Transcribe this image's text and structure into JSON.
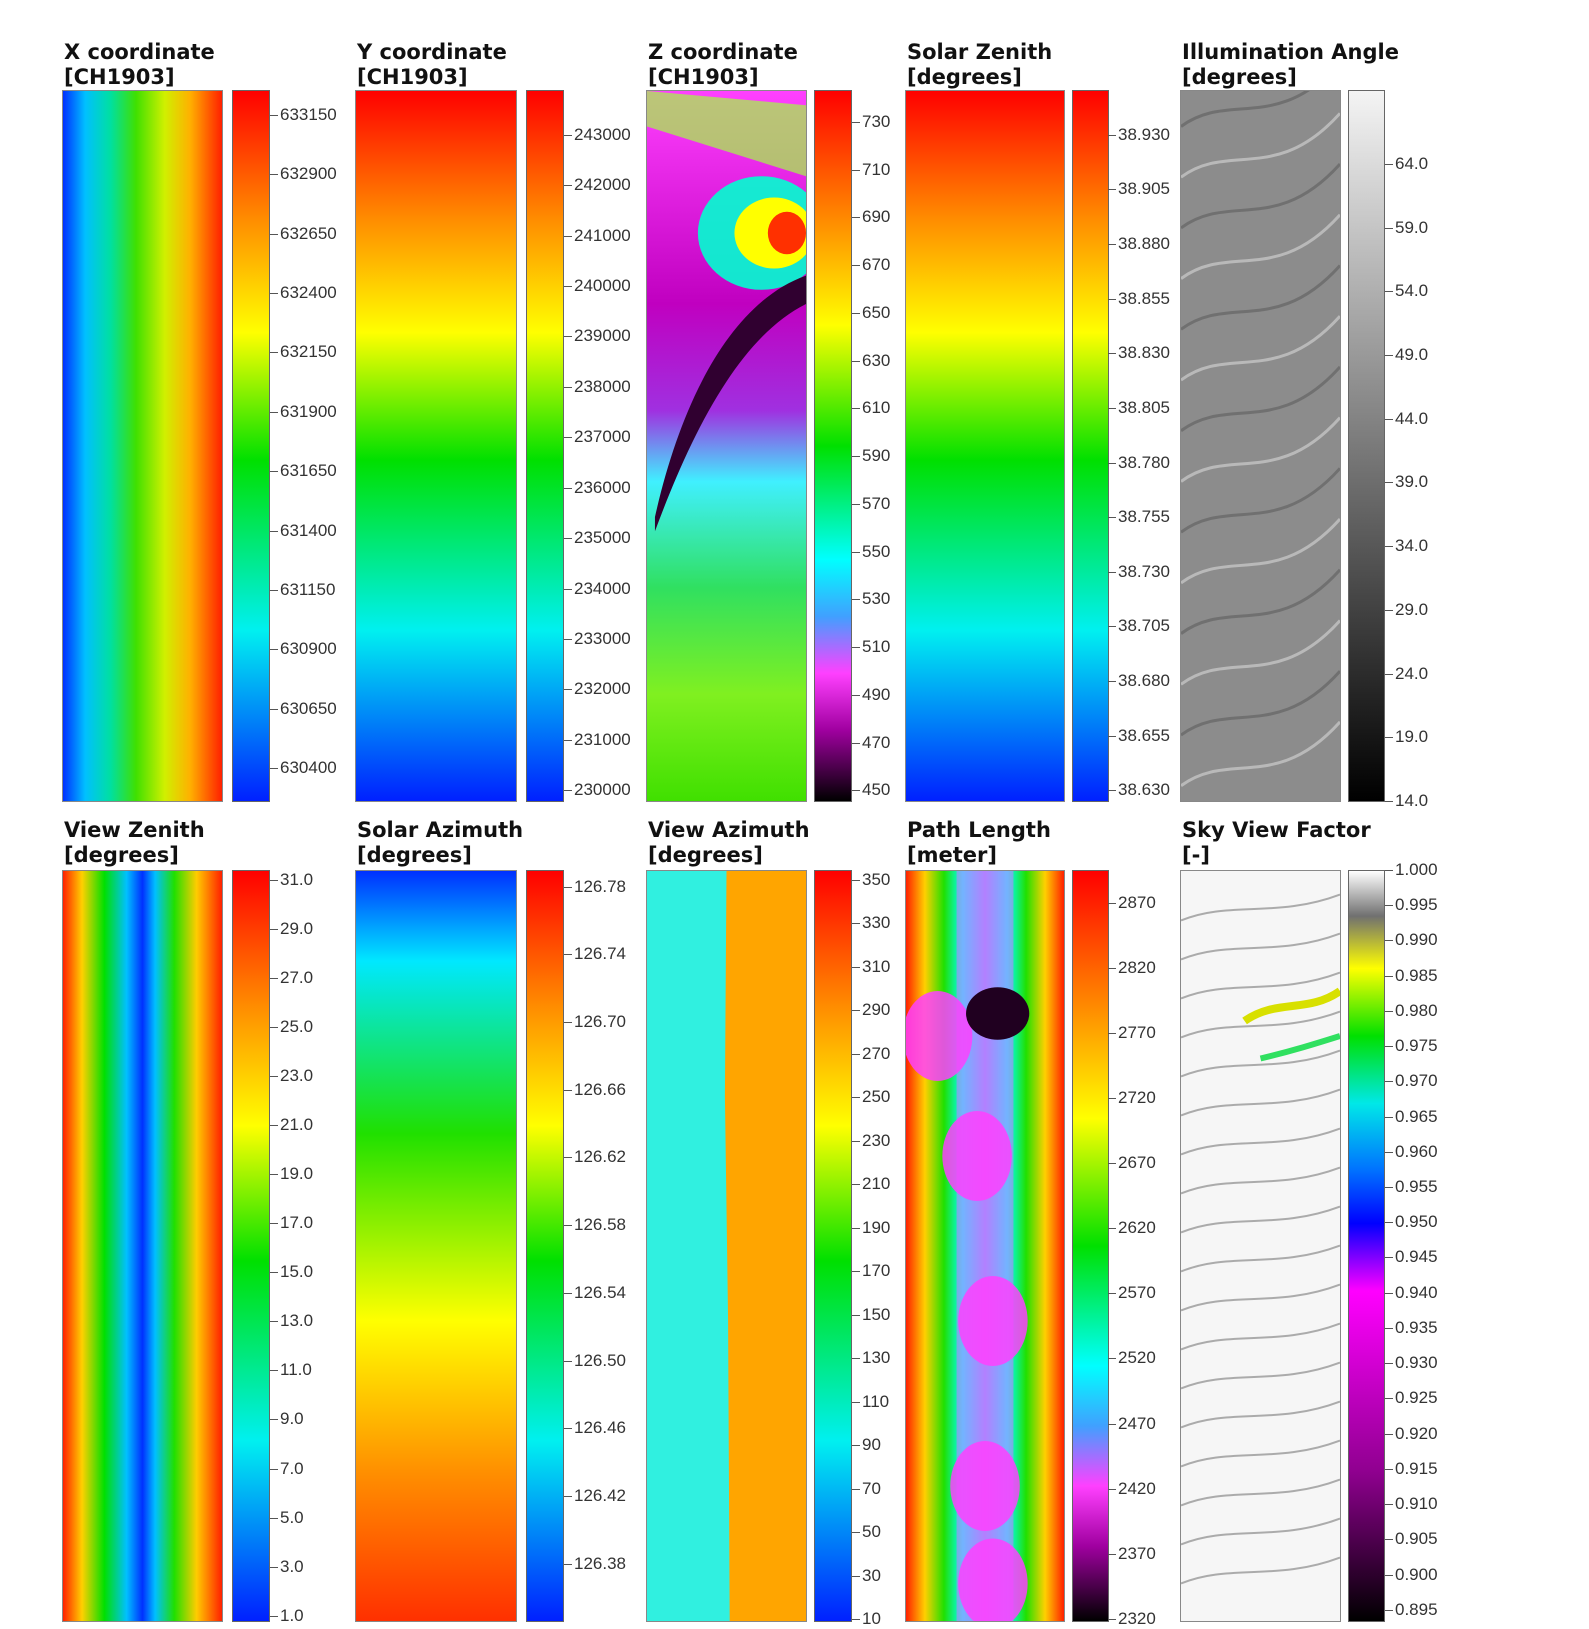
{
  "panels": [
    {
      "id": "x-coordinate",
      "title": "X coordinate",
      "unit": "[CH1903]",
      "colormap": "rainbow",
      "pattern": "horizontal",
      "ticks": [
        "633150",
        "632900",
        "632650",
        "632400",
        "632150",
        "631900",
        "631650",
        "631400",
        "631150",
        "630900",
        "630650",
        "630400"
      ],
      "tick_start": 0.035,
      "tick_end": 0.954
    },
    {
      "id": "y-coordinate",
      "title": "Y coordinate",
      "unit": "[CH1903]",
      "colormap": "rainbow",
      "pattern": "vertical",
      "ticks": [
        "243000",
        "242000",
        "241000",
        "240000",
        "239000",
        "238000",
        "237000",
        "236000",
        "235000",
        "234000",
        "233000",
        "232000",
        "231000",
        "230000"
      ],
      "tick_start": 0.063,
      "tick_end": 0.985
    },
    {
      "id": "z-coordinate",
      "title": "Z coordinate",
      "unit": "[CH1903]",
      "colormap": "elevation",
      "pattern": "terrain",
      "ticks": [
        "730",
        "710",
        "690",
        "670",
        "650",
        "630",
        "610",
        "590",
        "570",
        "550",
        "530",
        "510",
        "490",
        "470",
        "450"
      ],
      "tick_start": 0.045,
      "tick_end": 0.985
    },
    {
      "id": "solar-zenith",
      "title": "Solar Zenith",
      "unit": "[degrees]",
      "colormap": "rainbow",
      "pattern": "vertical",
      "ticks": [
        "38.930",
        "38.905",
        "38.880",
        "38.855",
        "38.830",
        "38.805",
        "38.780",
        "38.755",
        "38.730",
        "38.705",
        "38.680",
        "38.655",
        "38.630"
      ],
      "tick_start": 0.063,
      "tick_end": 0.985
    },
    {
      "id": "illumination-angle",
      "title": "Illumination Angle",
      "unit": "[degrees]",
      "colormap": "gray",
      "pattern": "hillshade",
      "ticks": [
        "64.0",
        "59.0",
        "54.0",
        "49.0",
        "44.0",
        "39.0",
        "34.0",
        "29.0",
        "24.0",
        "19.0",
        "14.0"
      ],
      "tick_start": 0.104,
      "tick_end": 1.0
    },
    {
      "id": "view-zenith",
      "title": "View Zenith",
      "unit": "[degrees]",
      "colormap": "rainbow",
      "pattern": "stripes",
      "ticks": [
        "31.0",
        "29.0",
        "27.0",
        "25.0",
        "23.0",
        "21.0",
        "19.0",
        "17.0",
        "15.0",
        "13.0",
        "11.0",
        "9.0",
        "7.0",
        "5.0",
        "3.0",
        "1.0"
      ],
      "tick_start": 0.013,
      "tick_end": 0.993
    },
    {
      "id": "solar-azimuth",
      "title": "Solar Azimuth",
      "unit": "[degrees]",
      "colormap": "rainbow",
      "pattern": "azimuth",
      "ticks": [
        "126.78",
        "126.74",
        "126.70",
        "126.66",
        "126.62",
        "126.58",
        "126.54",
        "126.50",
        "126.46",
        "126.42",
        "126.38"
      ],
      "tick_start": 0.022,
      "tick_end": 0.924
    },
    {
      "id": "view-azimuth",
      "title": "View Azimuth",
      "unit": "[degrees]",
      "colormap": "rainbow",
      "pattern": "split",
      "ticks": [
        "350",
        "330",
        "310",
        "290",
        "270",
        "250",
        "230",
        "210",
        "190",
        "170",
        "150",
        "130",
        "110",
        "90",
        "70",
        "50",
        "30",
        "10"
      ],
      "tick_start": 0.013,
      "tick_end": 0.998
    },
    {
      "id": "path-length",
      "title": "Path Length",
      "unit": "[meter]",
      "colormap": "elevation",
      "pattern": "path",
      "ticks": [
        "2870",
        "2820",
        "2770",
        "2720",
        "2670",
        "2620",
        "2570",
        "2520",
        "2470",
        "2420",
        "2370",
        "2320"
      ],
      "tick_start": 0.044,
      "tick_end": 0.997
    },
    {
      "id": "sky-view-factor",
      "title": "Sky View Factor",
      "unit": "[-]",
      "colormap": "sky",
      "pattern": "skyview",
      "ticks": [
        "1.000",
        "0.995",
        "0.990",
        "0.985",
        "0.980",
        "0.975",
        "0.970",
        "0.965",
        "0.960",
        "0.955",
        "0.950",
        "0.945",
        "0.940",
        "0.935",
        "0.930",
        "0.925",
        "0.920",
        "0.915",
        "0.910",
        "0.905",
        "0.900",
        "0.895"
      ],
      "tick_start": 0.0,
      "tick_end": 0.985
    }
  ]
}
